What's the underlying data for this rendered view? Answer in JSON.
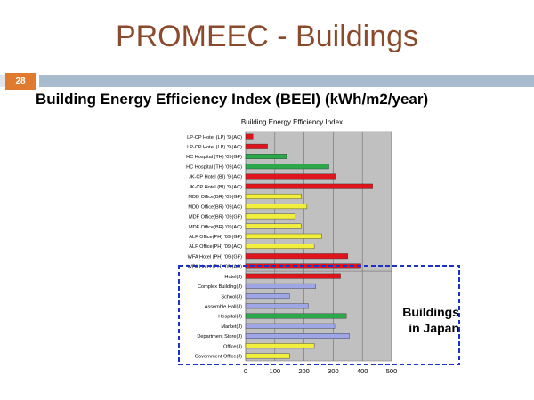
{
  "slide": {
    "title": "PROMEEC - Buildings",
    "page_number": "28",
    "subtitle": "Building Energy Efficiency Index (BEEI) (kWh/m2/year)",
    "japan_label_line1": "Buildings",
    "japan_label_line2": "in Japan"
  },
  "colors": {
    "title": "#8b4a2c",
    "band": "#a9bccf",
    "page_badge": "#e07a2e",
    "plot_bg": "#c0c0c0",
    "red": "#e0141c",
    "green": "#2aa84a",
    "yellow": "#f2ee3c",
    "blue": "#9ea6e6",
    "japan_box": "#1a32c8"
  },
  "chart_data": {
    "type": "bar",
    "orientation": "horizontal",
    "title": "Building Energy Efficiency Index",
    "xlim": [
      0,
      500
    ],
    "xticks": [
      0,
      100,
      200,
      300,
      400,
      500
    ],
    "grid": true,
    "categories": [
      "LP-CP Hotel (LP) '9 (AC)",
      "LP-CP Hotel (LP) '9 (AC)",
      "HC Hospital (TH) '09(GF)",
      "HC Hospital (TH) '09(AC)",
      "JK-CP Hotel (BI) '9 (AC)",
      "JK-CP Hotel (BI) '9 (AC)",
      "MDD Office(BR) '09(GF)",
      "MDD Office(BR) '09(AC)",
      "MDF Office(BR) '09(GF)",
      "MDF Office(BR) '09(AC)",
      "ALF Office(PH) '09 (GF)",
      "ALF Office(PH) '09 (AC)",
      "WFA Hotel (PH) '09 (GF)",
      "WFA Hotel (PH) '09 (AC)",
      "Hotel(J)",
      "Complex Building(J)",
      "School(J)",
      "Assemble Hall(J)",
      "Hospital(J)",
      "Market(J)",
      "Department Store(J)",
      "Office(J)",
      "Government Office(J)"
    ],
    "values": [
      25,
      75,
      140,
      285,
      310,
      435,
      190,
      210,
      170,
      190,
      260,
      235,
      350,
      395,
      325,
      240,
      150,
      215,
      345,
      305,
      355,
      235,
      150
    ],
    "colors": [
      "red",
      "red",
      "green",
      "green",
      "red",
      "red",
      "yellow",
      "yellow",
      "yellow",
      "yellow",
      "yellow",
      "yellow",
      "red",
      "red",
      "red",
      "blue",
      "blue",
      "blue",
      "green",
      "blue",
      "blue",
      "yellow",
      "yellow"
    ],
    "highlight_group": {
      "start_index": 14,
      "end_index": 22
    }
  }
}
